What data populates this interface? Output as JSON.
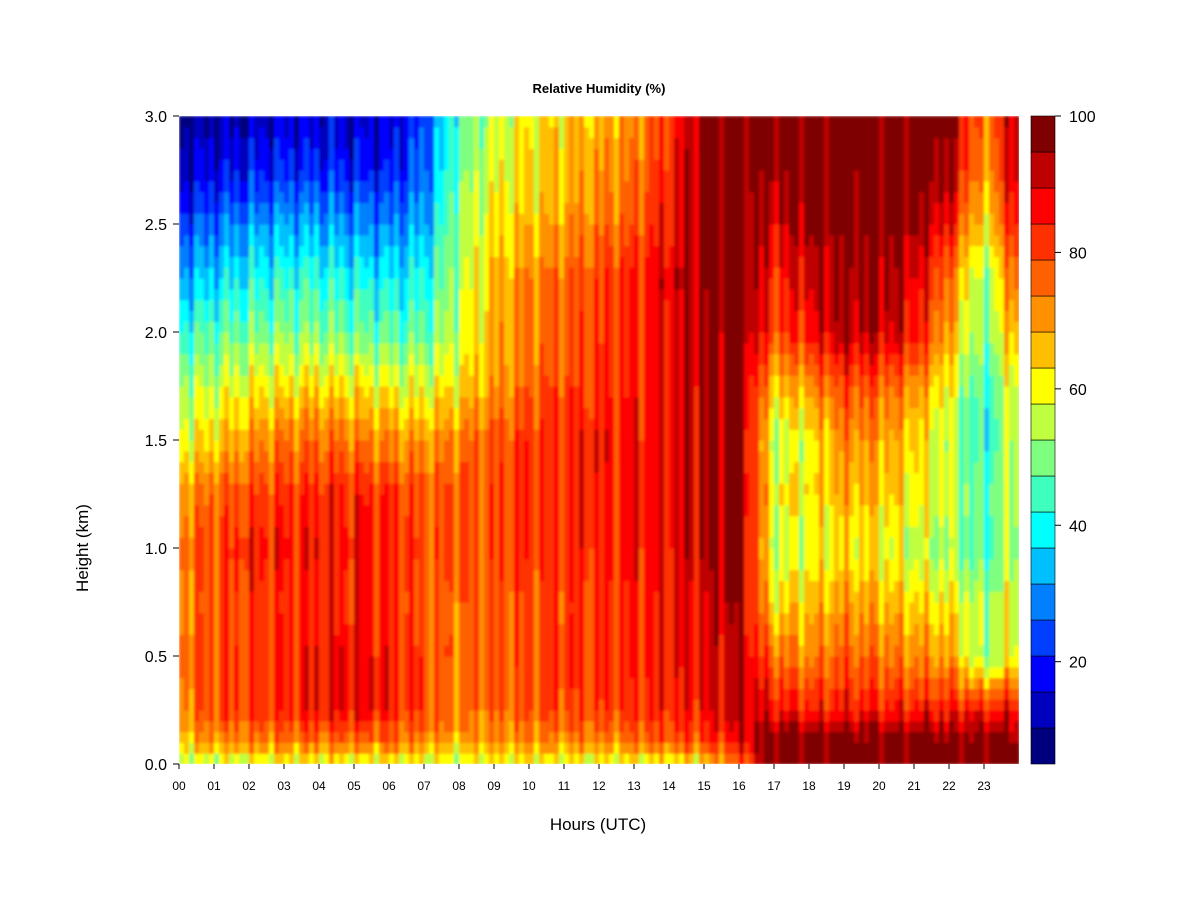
{
  "chart_data": {
    "type": "heatmap",
    "title": "Relative Humidity (%)",
    "xlabel": "Hours (UTC)",
    "ylabel": "Height (km)",
    "xlim": [
      0,
      24
    ],
    "ylim": [
      0,
      3
    ],
    "x_ticks": [
      "00",
      "01",
      "02",
      "03",
      "04",
      "05",
      "06",
      "07",
      "08",
      "09",
      "10",
      "11",
      "12",
      "13",
      "14",
      "15",
      "16",
      "17",
      "18",
      "19",
      "20",
      "21",
      "22",
      "23"
    ],
    "y_ticks": [
      "0.0",
      "0.5",
      "1.0",
      "1.5",
      "2.0",
      "2.5",
      "3.0"
    ],
    "y_tick_values": [
      0,
      0.5,
      1.0,
      1.5,
      2.0,
      2.5,
      3.0
    ],
    "colorbar": {
      "range": [
        5,
        100
      ],
      "levels": [
        5,
        10,
        15,
        20,
        25,
        30,
        35,
        40,
        45,
        50,
        55,
        60,
        65,
        70,
        75,
        80,
        85,
        90,
        95,
        100
      ],
      "tick_labels": [
        "20",
        "40",
        "60",
        "80",
        "100"
      ],
      "tick_values": [
        20,
        40,
        60,
        80,
        100
      ],
      "colors": [
        "#00007F",
        "#0000BF",
        "#0000FF",
        "#003FFF",
        "#007FFF",
        "#00BFFF",
        "#00FFFF",
        "#3FFFBF",
        "#7FFF7F",
        "#BFFF3F",
        "#FFFF00",
        "#FFBF00",
        "#FF9000",
        "#FF6000",
        "#FF3000",
        "#FF0000",
        "#BF0000",
        "#7F0000"
      ]
    },
    "heights_km": [
      0.0,
      0.1,
      0.25,
      0.5,
      0.75,
      1.0,
      1.25,
      1.5,
      1.75,
      2.0,
      2.25,
      2.5,
      2.75,
      3.0
    ],
    "hours": [
      0,
      1,
      2,
      3,
      4,
      5,
      6,
      7,
      8,
      9,
      10,
      11,
      12,
      13,
      14,
      15,
      16,
      17,
      18,
      19,
      20,
      21,
      22,
      23,
      24
    ],
    "rh_percent": [
      [
        55,
        55,
        55,
        58,
        58,
        58,
        58,
        55,
        55,
        58,
        58,
        58,
        58,
        58,
        58,
        60,
        75,
        100,
        100,
        100,
        100,
        100,
        100,
        100,
        100
      ],
      [
        65,
        70,
        72,
        74,
        75,
        75,
        75,
        72,
        68,
        70,
        72,
        72,
        72,
        75,
        78,
        80,
        88,
        100,
        100,
        100,
        100,
        100,
        100,
        100,
        100
      ],
      [
        72,
        80,
        82,
        84,
        86,
        88,
        86,
        80,
        74,
        76,
        78,
        80,
        80,
        82,
        84,
        86,
        92,
        88,
        85,
        85,
        85,
        85,
        85,
        85,
        85
      ],
      [
        74,
        80,
        82,
        84,
        86,
        88,
        86,
        80,
        76,
        78,
        80,
        82,
        82,
        84,
        86,
        88,
        94,
        75,
        72,
        78,
        75,
        72,
        70,
        50,
        62
      ],
      [
        72,
        78,
        82,
        82,
        84,
        84,
        84,
        78,
        76,
        78,
        80,
        80,
        82,
        84,
        86,
        90,
        96,
        62,
        66,
        70,
        68,
        64,
        62,
        52,
        60
      ],
      [
        74,
        80,
        84,
        86,
        86,
        86,
        86,
        80,
        78,
        80,
        82,
        84,
        84,
        86,
        88,
        92,
        98,
        55,
        58,
        62,
        60,
        55,
        52,
        44,
        55
      ],
      [
        70,
        76,
        80,
        82,
        84,
        84,
        82,
        78,
        78,
        80,
        82,
        84,
        84,
        86,
        88,
        92,
        98,
        60,
        62,
        68,
        66,
        62,
        58,
        45,
        58
      ],
      [
        58,
        64,
        70,
        74,
        76,
        74,
        72,
        70,
        74,
        78,
        82,
        84,
        86,
        86,
        88,
        92,
        98,
        55,
        60,
        72,
        70,
        64,
        55,
        40,
        60
      ],
      [
        52,
        56,
        60,
        62,
        64,
        62,
        60,
        58,
        62,
        70,
        76,
        80,
        82,
        84,
        88,
        92,
        98,
        65,
        70,
        80,
        78,
        72,
        60,
        42,
        62
      ],
      [
        42,
        46,
        48,
        50,
        50,
        48,
        46,
        46,
        56,
        68,
        74,
        78,
        80,
        84,
        88,
        94,
        100,
        80,
        86,
        94,
        92,
        88,
        70,
        48,
        72
      ],
      [
        32,
        36,
        40,
        42,
        42,
        40,
        38,
        40,
        54,
        66,
        72,
        76,
        80,
        84,
        90,
        96,
        100,
        84,
        90,
        96,
        96,
        90,
        75,
        50,
        80
      ],
      [
        22,
        26,
        30,
        32,
        32,
        30,
        28,
        32,
        52,
        62,
        66,
        70,
        74,
        78,
        86,
        96,
        100,
        90,
        96,
        98,
        98,
        96,
        88,
        60,
        90
      ],
      [
        12,
        16,
        18,
        20,
        20,
        18,
        18,
        26,
        48,
        58,
        62,
        66,
        70,
        74,
        84,
        96,
        100,
        96,
        100,
        100,
        100,
        100,
        96,
        68,
        95
      ],
      [
        8,
        10,
        12,
        14,
        14,
        14,
        14,
        22,
        46,
        56,
        60,
        64,
        68,
        72,
        82,
        96,
        100,
        98,
        100,
        100,
        100,
        100,
        100,
        72,
        96
      ]
    ]
  }
}
